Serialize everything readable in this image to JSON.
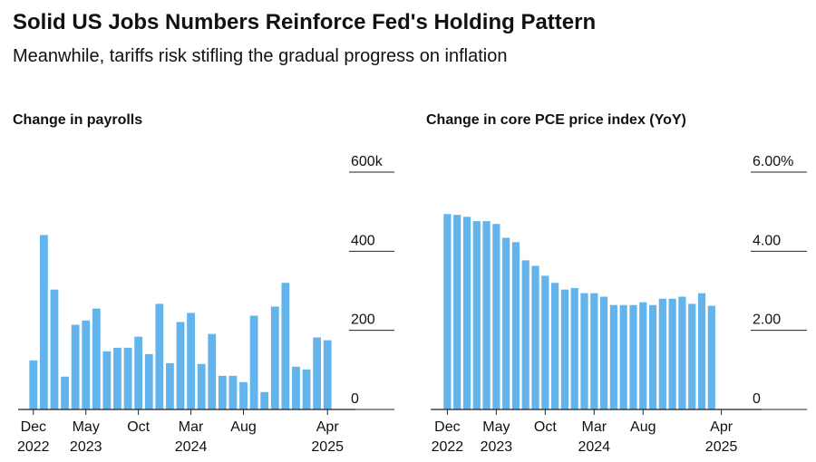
{
  "title": "Solid US Jobs Numbers Reinforce Fed's Holding Pattern",
  "subtitle": "Meanwhile, tariffs risk stifling the gradual progress on inflation",
  "chart_data": [
    {
      "type": "bar",
      "title": "Change in payrolls",
      "categories": [
        "Dec 2022",
        null,
        null,
        null,
        null,
        "May 2023",
        null,
        null,
        null,
        null,
        "Oct",
        null,
        null,
        null,
        null,
        "Mar 2024",
        null,
        null,
        null,
        null,
        "Aug",
        null,
        null,
        null,
        null,
        null,
        null,
        null,
        "Apr 2025"
      ],
      "values": [
        124,
        441,
        303,
        83,
        214,
        225,
        255,
        147,
        156,
        156,
        184,
        140,
        267,
        117,
        221,
        244,
        115,
        191,
        85,
        85,
        69,
        237,
        44,
        260,
        320,
        108,
        101,
        182,
        175
      ],
      "color": "#63b3ed",
      "ylim": [
        0,
        600
      ],
      "yticks": [
        0,
        200,
        400,
        {
          "value": 600,
          "label": "600k"
        }
      ]
    },
    {
      "type": "bar",
      "title": "Change in core PCE price index (YoY)",
      "categories": [
        "Dec 2022",
        null,
        null,
        null,
        null,
        "May 2023",
        null,
        null,
        null,
        null,
        "Oct",
        null,
        null,
        null,
        null,
        "Mar 2024",
        null,
        null,
        null,
        null,
        "Aug",
        null,
        null,
        null,
        null,
        null,
        null,
        null,
        "Apr 2025"
      ],
      "values": [
        4.94,
        4.92,
        4.87,
        4.76,
        4.76,
        4.69,
        4.34,
        4.23,
        3.77,
        3.63,
        3.38,
        3.2,
        3.03,
        3.07,
        2.94,
        2.94,
        2.85,
        2.64,
        2.64,
        2.64,
        2.71,
        2.64,
        2.8,
        2.8,
        2.85,
        2.67,
        2.94,
        2.62,
        null
      ],
      "color": "#63b3ed",
      "ylim": [
        0,
        6
      ],
      "yticks": [
        0,
        {
          "value": 2,
          "label": "2.00"
        },
        {
          "value": 4,
          "label": "4.00"
        },
        {
          "value": 6,
          "label": "6.00%"
        }
      ]
    }
  ]
}
